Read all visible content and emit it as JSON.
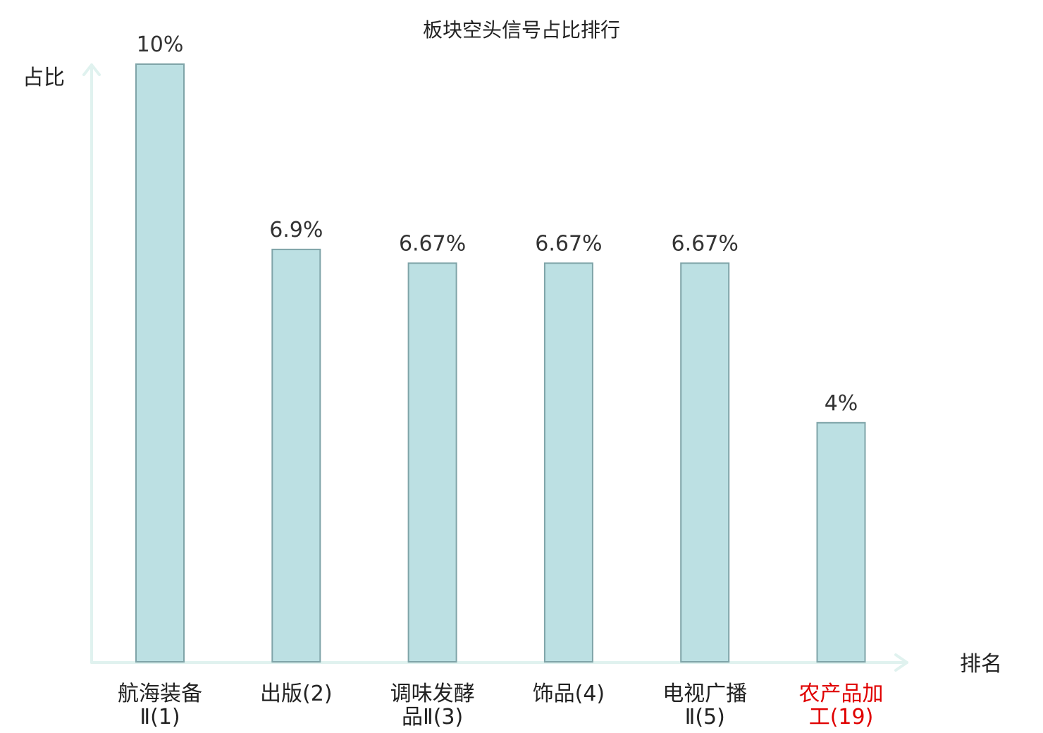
{
  "chart_data": {
    "type": "bar",
    "title": "板块空头信号占比排行",
    "ylabel": "占比",
    "xlabel": "排名",
    "ylim": [
      0,
      10
    ],
    "grid": false,
    "legend": "none",
    "categories": [
      [
        "航海装备",
        "Ⅱ(1)"
      ],
      [
        "出版(2)"
      ],
      [
        "调味发酵",
        "品Ⅱ(3)"
      ],
      [
        "饰品(4)"
      ],
      [
        "电视广播",
        "Ⅱ(5)"
      ],
      [
        "农产品加",
        "工(19)"
      ]
    ],
    "values": [
      10,
      6.9,
      6.67,
      6.67,
      6.67,
      4
    ],
    "value_labels": [
      "10%",
      "6.9%",
      "6.67%",
      "6.67%",
      "6.67%",
      "4%"
    ],
    "highlight_index": 5,
    "colors": {
      "bar_fill": "#bce0e3",
      "bar_stroke": "#7fa4a8",
      "axis": "#e0f2ef",
      "text": "#222222",
      "highlight_text": "#e00000"
    }
  }
}
